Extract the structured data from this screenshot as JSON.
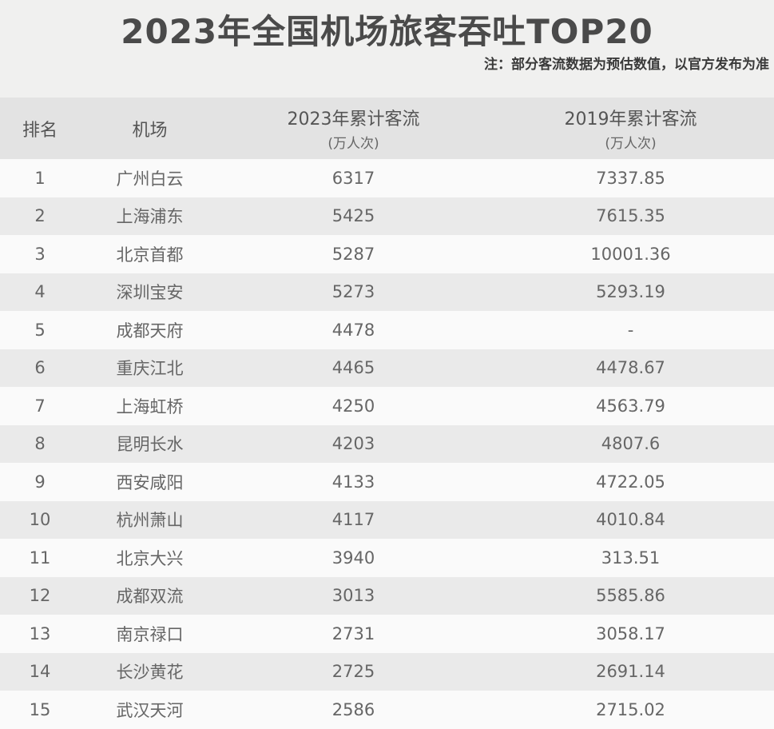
{
  "title": "2023年全国机场旅客吞吐TOP20",
  "note": "注：部分客流数据为预估数值，以官方发布为准",
  "headers": {
    "rank": "排名",
    "airport": "机场",
    "y2023": "2023年累计客流",
    "y2023_unit": "(万人次)",
    "y2019": "2019年累计客流",
    "y2019_unit": "(万人次)"
  },
  "chart_data": {
    "type": "table",
    "columns": [
      "排名",
      "机场",
      "2023年累计客流(万人次)",
      "2019年累计客流(万人次)"
    ],
    "rows": [
      [
        "1",
        "广州白云",
        "6317",
        "7337.85"
      ],
      [
        "2",
        "上海浦东",
        "5425",
        "7615.35"
      ],
      [
        "3",
        "北京首都",
        "5287",
        "10001.36"
      ],
      [
        "4",
        "深圳宝安",
        "5273",
        "5293.19"
      ],
      [
        "5",
        "成都天府",
        "4478",
        "-"
      ],
      [
        "6",
        "重庆江北",
        "4465",
        "4478.67"
      ],
      [
        "7",
        "上海虹桥",
        "4250",
        "4563.79"
      ],
      [
        "8",
        "昆明长水",
        "4203",
        "4807.6"
      ],
      [
        "9",
        "西安咸阳",
        "4133",
        "4722.05"
      ],
      [
        "10",
        "杭州萧山",
        "4117",
        "4010.84"
      ],
      [
        "11",
        "北京大兴",
        "3940",
        "313.51"
      ],
      [
        "12",
        "成都双流",
        "3013",
        "5585.86"
      ],
      [
        "13",
        "南京禄口",
        "2731",
        "3058.17"
      ],
      [
        "14",
        "长沙黄花",
        "2725",
        "2691.14"
      ],
      [
        "15",
        "武汉天河",
        "2586",
        "2715.02"
      ]
    ]
  }
}
